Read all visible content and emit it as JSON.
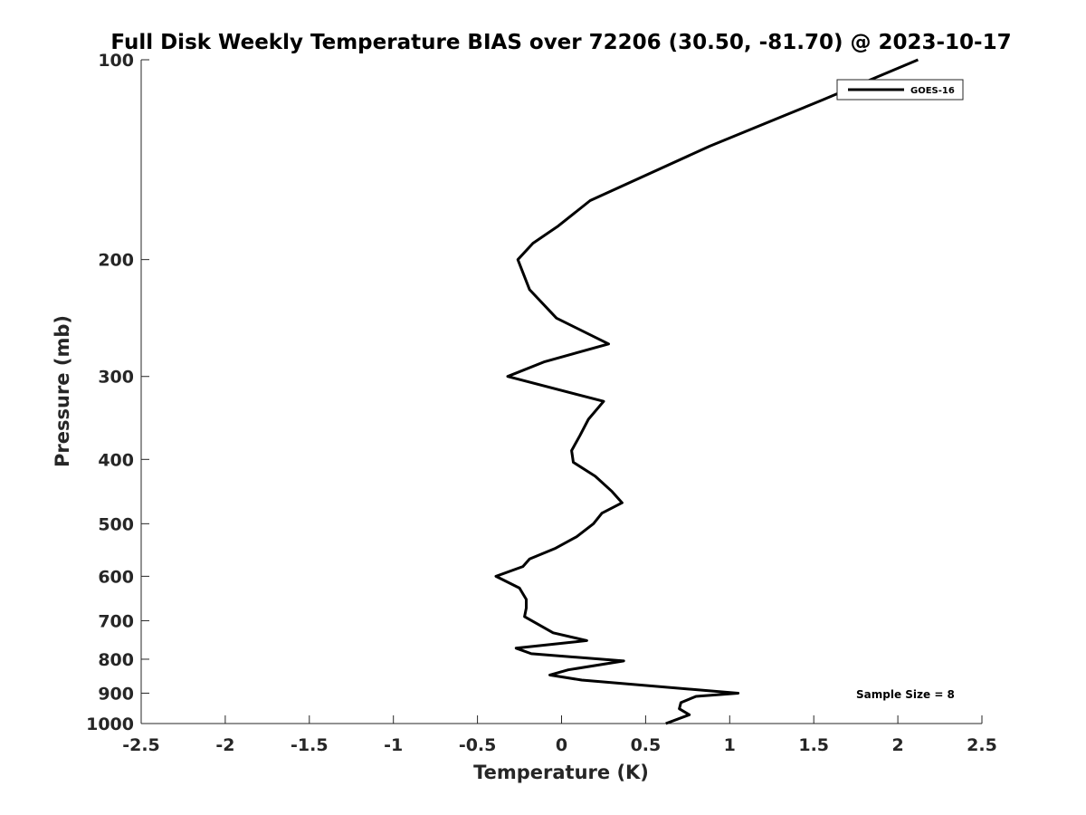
{
  "chart_data": {
    "type": "line",
    "title": "Full Disk Weekly Temperature BIAS over 72206 (30.50, -81.70) @ 2023-10-17",
    "xlabel": "Temperature (K)",
    "ylabel": "Pressure (mb)",
    "xlim": [
      -2.5,
      2.5
    ],
    "ylim": [
      100,
      1000
    ],
    "yscale": "log",
    "y_reversed": true,
    "grid": false,
    "legend_position": "top-right",
    "x_ticks": [
      -2.5,
      -2,
      -1.5,
      -1,
      -0.5,
      0,
      0.5,
      1,
      1.5,
      2,
      2.5
    ],
    "x_tick_labels": [
      "-2.5",
      "-2",
      "-1.5",
      "-1",
      "-0.5",
      "0",
      "0.5",
      "1",
      "1.5",
      "2",
      "2.5"
    ],
    "y_ticks": [
      100,
      200,
      300,
      400,
      500,
      600,
      700,
      800,
      900,
      1000
    ],
    "y_tick_labels": [
      "100",
      "200",
      "300",
      "400",
      "500",
      "600",
      "700",
      "800",
      "900",
      "1000"
    ],
    "annotation": "Sample Size = 8",
    "series": [
      {
        "name": "GOES-16",
        "color": "#000000",
        "points": [
          [
            2.12,
            100
          ],
          [
            1.55,
            115
          ],
          [
            0.88,
            135
          ],
          [
            0.17,
            163
          ],
          [
            -0.02,
            178
          ],
          [
            -0.17,
            189
          ],
          [
            -0.26,
            200
          ],
          [
            -0.19,
            222
          ],
          [
            -0.03,
            245
          ],
          [
            0.28,
            268
          ],
          [
            -0.1,
            285
          ],
          [
            -0.32,
            300
          ],
          [
            0.25,
            327
          ],
          [
            0.16,
            348
          ],
          [
            0.11,
            368
          ],
          [
            0.06,
            388
          ],
          [
            0.07,
            404
          ],
          [
            0.2,
            424
          ],
          [
            0.3,
            447
          ],
          [
            0.36,
            465
          ],
          [
            0.24,
            482
          ],
          [
            0.19,
            500
          ],
          [
            0.09,
            523
          ],
          [
            -0.04,
            545
          ],
          [
            -0.19,
            565
          ],
          [
            -0.23,
            580
          ],
          [
            -0.39,
            600
          ],
          [
            -0.25,
            625
          ],
          [
            -0.21,
            650
          ],
          [
            -0.21,
            670
          ],
          [
            -0.22,
            690
          ],
          [
            -0.05,
            730
          ],
          [
            0.15,
            750
          ],
          [
            -0.27,
            770
          ],
          [
            -0.18,
            785
          ],
          [
            0.37,
            805
          ],
          [
            0.04,
            830
          ],
          [
            -0.07,
            845
          ],
          [
            0.12,
            860
          ],
          [
            1.05,
            900
          ],
          [
            0.8,
            910
          ],
          [
            0.71,
            930
          ],
          [
            0.7,
            950
          ],
          [
            0.76,
            970
          ],
          [
            0.62,
            1000
          ]
        ]
      }
    ]
  }
}
